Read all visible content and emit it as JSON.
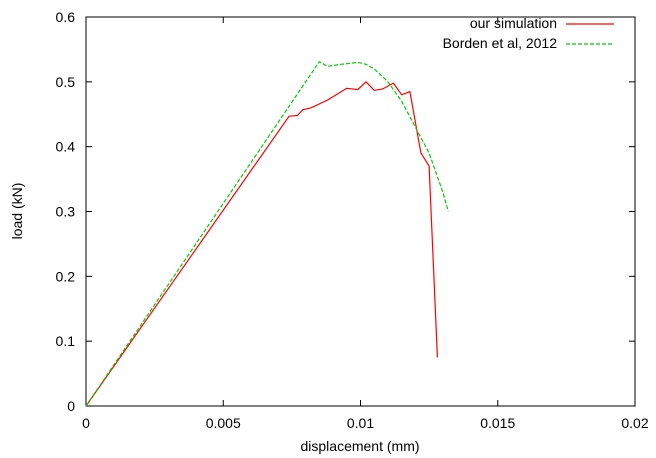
{
  "chart_data": {
    "type": "line",
    "title": "",
    "xlabel": "displacement (mm)",
    "ylabel": "load (kN)",
    "xlim": [
      0,
      0.02
    ],
    "ylim": [
      0,
      0.6
    ],
    "xticks": [
      0,
      0.005,
      0.01,
      0.015,
      0.02
    ],
    "xtick_labels": [
      "0",
      "0.005",
      "0.01",
      "0.015",
      "0.02"
    ],
    "yticks": [
      0,
      0.1,
      0.2,
      0.3,
      0.4,
      0.5,
      0.6
    ],
    "ytick_labels": [
      "0",
      "0.1",
      "0.2",
      "0.3",
      "0.4",
      "0.5",
      "0.6"
    ],
    "grid": false,
    "legend_position": "top-right",
    "series": [
      {
        "name": "our simulation",
        "color": "#ff0000",
        "dash": "solid",
        "points": [
          [
            0,
            0
          ],
          [
            0.0074,
            0.447
          ],
          [
            0.0077,
            0.448
          ],
          [
            0.0079,
            0.457
          ],
          [
            0.0082,
            0.46
          ],
          [
            0.0088,
            0.472
          ],
          [
            0.0095,
            0.49
          ],
          [
            0.0099,
            0.488
          ],
          [
            0.0102,
            0.5
          ],
          [
            0.0105,
            0.487
          ],
          [
            0.0108,
            0.489
          ],
          [
            0.0112,
            0.498
          ],
          [
            0.0115,
            0.48
          ],
          [
            0.0118,
            0.485
          ],
          [
            0.0122,
            0.39
          ],
          [
            0.0125,
            0.37
          ],
          [
            0.0128,
            0.075
          ]
        ]
      },
      {
        "name": "Borden et al, 2012",
        "color": "#00cc00",
        "dash": "dashed",
        "points": [
          [
            0,
            0
          ],
          [
            0.0085,
            0.531
          ],
          [
            0.0088,
            0.524
          ],
          [
            0.0093,
            0.527
          ],
          [
            0.0099,
            0.53
          ],
          [
            0.0102,
            0.527
          ],
          [
            0.0105,
            0.52
          ],
          [
            0.011,
            0.5
          ],
          [
            0.0115,
            0.47
          ],
          [
            0.012,
            0.43
          ],
          [
            0.0125,
            0.39
          ],
          [
            0.013,
            0.33
          ],
          [
            0.0132,
            0.3
          ]
        ]
      }
    ]
  }
}
